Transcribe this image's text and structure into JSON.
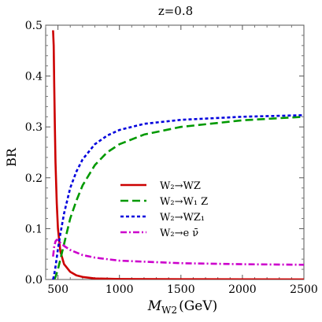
{
  "chart_data": {
    "type": "line",
    "title": "z=0.8",
    "xlabel_main": "M",
    "xlabel_sub": "W2",
    "xlabel_unit": "(GeV)",
    "ylabel": "BR",
    "xlim": [
      400,
      2500
    ],
    "ylim": [
      0,
      0.5
    ],
    "xticks": [
      500,
      1000,
      1500,
      2000,
      2500
    ],
    "yticks": [
      0.0,
      0.1,
      0.2,
      0.3,
      0.4,
      0.5
    ],
    "grid": false,
    "legend_position": "center",
    "series": [
      {
        "name": "W₂→WZ",
        "color": "#cc0000",
        "dash": "solid",
        "x": [
          460,
          465,
          470,
          475,
          480,
          490,
          500,
          520,
          550,
          600,
          650,
          700,
          800,
          1000,
          1500,
          2000,
          2500
        ],
        "values": [
          0.49,
          0.46,
          0.38,
          0.3,
          0.23,
          0.15,
          0.1,
          0.055,
          0.03,
          0.015,
          0.008,
          0.005,
          0.002,
          0.001,
          0.0005,
          0.0003,
          0.0002
        ]
      },
      {
        "name": "W₂→W₁ Z",
        "color": "#009900",
        "dash": "long",
        "x": [
          470,
          480,
          500,
          520,
          550,
          600,
          650,
          700,
          800,
          900,
          1000,
          1200,
          1500,
          2000,
          2500
        ],
        "values": [
          0.0,
          0.005,
          0.02,
          0.04,
          0.07,
          0.12,
          0.155,
          0.185,
          0.225,
          0.25,
          0.266,
          0.285,
          0.3,
          0.313,
          0.32
        ]
      },
      {
        "name": "W₂→WZ₁",
        "color": "#0000dd",
        "dash": "short",
        "x": [
          460,
          470,
          480,
          500,
          520,
          550,
          600,
          650,
          700,
          800,
          900,
          1000,
          1200,
          1500,
          2000,
          2500
        ],
        "values": [
          0.0,
          0.01,
          0.025,
          0.06,
          0.09,
          0.13,
          0.18,
          0.212,
          0.236,
          0.266,
          0.283,
          0.294,
          0.306,
          0.314,
          0.32,
          0.323
        ]
      },
      {
        "name": "W₂→e ν̄",
        "color": "#cc00cc",
        "dash": "dashdot",
        "x": [
          460,
          470,
          480,
          490,
          500,
          520,
          550,
          600,
          700,
          800,
          1000,
          1500,
          2000,
          2500
        ],
        "values": [
          0.045,
          0.065,
          0.075,
          0.078,
          0.077,
          0.072,
          0.066,
          0.058,
          0.048,
          0.043,
          0.037,
          0.032,
          0.03,
          0.029
        ]
      }
    ]
  }
}
